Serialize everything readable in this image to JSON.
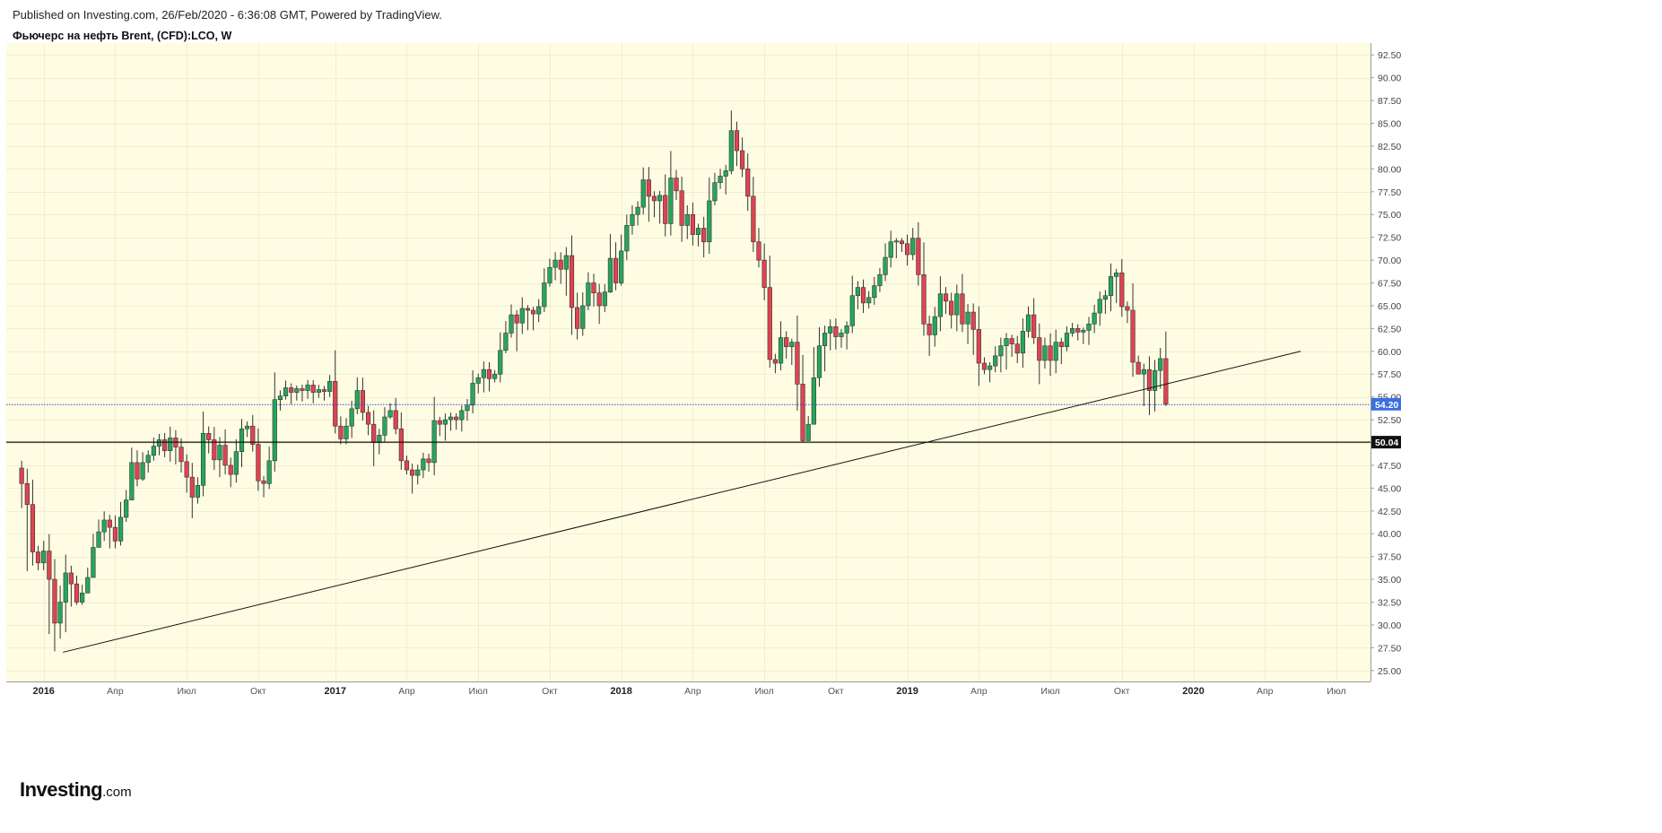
{
  "header": {
    "published": "Published on Investing.com, 26/Feb/2020 - 6:36:08 GMT, Powered by TradingView.",
    "symbol": "Фьючерс на нефть Brent, (CFD):LCO, W"
  },
  "logo": {
    "main": "Investing",
    "suffix": ".com"
  },
  "colors": {
    "background": "#fefde3",
    "up": "#26a65b",
    "down": "#e04350",
    "wick": "#333333",
    "trendline": "#111111",
    "support_line": "#111111",
    "price_line": "#3b48d8",
    "price_badge": "#3b6fe0",
    "support_badge": "#111111"
  },
  "chart_data": {
    "type": "candlestick",
    "timeframe": "W",
    "x_tick_labels": [
      "2016",
      "Апр",
      "Июл",
      "Окт",
      "2017",
      "Апр",
      "Июл",
      "Окт",
      "2018",
      "Апр",
      "Июл",
      "Окт",
      "2019",
      "Апр",
      "Июл",
      "Окт",
      "2020",
      "Апр",
      "Июл"
    ],
    "x_tick_bold": [
      true,
      false,
      false,
      false,
      true,
      false,
      false,
      false,
      true,
      false,
      false,
      false,
      true,
      false,
      false,
      false,
      true,
      false,
      false
    ],
    "x_tick_weeks": [
      4,
      17,
      30,
      43,
      57,
      70,
      83,
      96,
      109,
      122,
      135,
      148,
      161,
      174,
      187,
      200,
      213,
      226,
      239
    ],
    "y_ticks": [
      "25.00",
      "27.50",
      "30.00",
      "32.50",
      "35.00",
      "37.50",
      "40.00",
      "42.50",
      "45.00",
      "47.50",
      "50.00",
      "52.50",
      "55.00",
      "57.50",
      "60.00",
      "62.50",
      "65.00",
      "67.50",
      "70.00",
      "72.50",
      "75.00",
      "77.50",
      "80.00",
      "82.50",
      "85.00",
      "87.50",
      "90.00",
      "92.50"
    ],
    "ylim": [
      23.8,
      93.8
    ],
    "x_range_weeks": [
      -2.8,
      245.2
    ],
    "current_price": {
      "value": 54.2,
      "label": "54.20"
    },
    "support_level": {
      "value": 50.04,
      "label": "50.04"
    },
    "trendline": {
      "from": {
        "week": 7.5,
        "price": 27.0
      },
      "to": {
        "week": 232.5,
        "price": 60.0
      }
    },
    "closes": [
      45.5,
      43.2,
      38.0,
      36.8,
      38.1,
      35.0,
      30.2,
      32.5,
      35.7,
      34.5,
      32.5,
      33.5,
      35.2,
      38.5,
      40.2,
      41.5,
      40.7,
      39.2,
      41.8,
      43.7,
      47.8,
      46.0,
      47.8,
      48.6,
      49.6,
      50.3,
      49.1,
      50.5,
      49.5,
      47.9,
      46.2,
      44.0,
      45.3,
      51.0,
      50.3,
      48.1,
      49.7,
      47.5,
      46.5,
      49.0,
      51.5,
      51.8,
      49.8,
      45.8,
      45.5,
      48.0,
      54.7,
      55.1,
      56.0,
      55.5,
      55.9,
      55.7,
      56.3,
      55.5,
      55.8,
      55.6,
      56.7,
      51.8,
      50.4,
      51.8,
      53.7,
      55.7,
      53.3,
      52.0,
      50.0,
      50.8,
      52.8,
      53.5,
      51.5,
      48.0,
      47.0,
      46.4,
      47.0,
      48.2,
      47.8,
      52.4,
      52.0,
      52.5,
      52.8,
      52.5,
      53.5,
      54.1,
      56.5,
      57.1,
      58.0,
      57.0,
      57.5,
      60.1,
      62.0,
      64.0,
      63.1,
      64.7,
      64.5,
      64.1,
      64.9,
      67.5,
      69.2,
      70.0,
      69.0,
      70.5,
      64.8,
      62.5,
      65.0,
      67.5,
      66.4,
      65.0,
      66.5,
      70.2,
      67.5,
      71.0,
      73.8,
      75.0,
      75.8,
      78.8,
      77.0,
      76.5,
      77.1,
      74.0,
      79.0,
      77.6,
      73.8,
      75.0,
      72.8,
      73.5,
      72.0,
      76.5,
      78.5,
      79.2,
      79.8,
      84.2,
      82.0,
      80.0,
      77.0,
      72.0,
      70.0,
      67.0,
      59.1,
      58.7,
      61.5,
      60.5,
      61.0,
      56.4,
      50.2,
      52.0,
      57.1,
      60.6,
      62.0,
      62.7,
      61.6,
      62.0,
      62.8,
      66.1,
      67.0,
      65.3,
      65.9,
      67.2,
      68.4,
      70.3,
      72.0,
      72.1,
      71.8,
      70.6,
      72.4,
      68.4,
      63.0,
      61.8,
      63.8,
      66.3,
      65.5,
      64.0,
      66.3,
      63.0,
      64.3,
      62.4,
      58.7,
      58.0,
      58.4,
      59.5,
      60.6,
      61.4,
      60.8,
      59.8,
      62.2,
      64.0,
      61.5,
      59.0,
      60.6,
      59.0,
      61.0,
      60.5,
      62.0,
      62.5,
      62.1,
      62.3,
      63.0,
      64.2,
      65.7,
      66.1,
      68.2,
      68.6,
      64.9,
      64.5,
      58.8,
      57.5,
      58.0,
      55.7,
      57.9,
      59.2,
      54.2
    ],
    "lows": [
      42.8,
      35.9,
      36.5,
      36.0,
      36.0,
      29.0,
      27.1,
      28.5,
      29.2,
      32.0,
      32.2,
      32.2,
      34.5,
      35.2,
      38.6,
      39.2,
      38.4,
      38.4,
      38.7,
      41.3,
      44.5,
      45.2,
      45.8,
      46.7,
      48.0,
      48.6,
      48.4,
      47.9,
      47.6,
      46.7,
      44.5,
      41.7,
      43.3,
      44.1,
      48.8,
      47.0,
      46.2,
      46.5,
      45.1,
      45.6,
      47.3,
      50.6,
      49.0,
      44.7,
      44.0,
      44.9,
      46.8,
      53.5,
      54.7,
      54.2,
      54.6,
      54.5,
      54.8,
      54.3,
      54.9,
      54.6,
      55.0,
      51.0,
      49.8,
      49.8,
      50.5,
      53.1,
      52.4,
      50.8,
      47.4,
      48.7,
      50.1,
      52.6,
      50.9,
      47.0,
      46.5,
      44.4,
      45.4,
      46.1,
      46.8,
      46.4,
      50.7,
      50.2,
      51.3,
      51.4,
      51.2,
      52.4,
      53.2,
      55.4,
      55.5,
      55.6,
      56.6,
      56.6,
      59.8,
      61.5,
      60.0,
      61.9,
      62.3,
      62.3,
      63.2,
      64.3,
      67.1,
      67.8,
      67.4,
      66.1,
      61.8,
      61.3,
      61.7,
      64.5,
      64.9,
      63.0,
      64.3,
      66.4,
      66.7,
      67.2,
      70.0,
      72.8,
      73.8,
      75.0,
      74.2,
      74.7,
      74.0,
      72.6,
      72.7,
      76.6,
      72.0,
      72.3,
      71.6,
      71.5,
      70.3,
      70.7,
      76.0,
      77.8,
      77.2,
      79.4,
      80.3,
      79.1,
      75.4,
      70.9,
      69.2,
      65.6,
      58.2,
      57.6,
      57.9,
      59.2,
      58.5,
      53.5,
      50.0,
      50.2,
      52.1,
      56.1,
      57.8,
      60.1,
      60.2,
      60.4,
      60.2,
      62.0,
      64.6,
      64.2,
      64.7,
      65.1,
      66.5,
      67.7,
      69.2,
      70.2,
      70.9,
      69.4,
      70.0,
      67.2,
      61.7,
      59.5,
      60.5,
      62.2,
      64.1,
      62.5,
      62.2,
      62.1,
      60.8,
      59.6,
      56.2,
      57.5,
      56.6,
      57.7,
      57.7,
      58.0,
      59.4,
      58.7,
      58.2,
      61.5,
      60.8,
      56.4,
      58.1,
      57.3,
      57.6,
      58.6,
      60.0,
      61.6,
      61.2,
      60.8,
      60.7,
      62.0,
      62.8,
      64.1,
      64.4,
      65.3,
      63.8,
      63.1,
      57.2,
      57.7,
      54.0,
      53.0,
      53.4,
      55.9,
      54.0
    ]
  }
}
